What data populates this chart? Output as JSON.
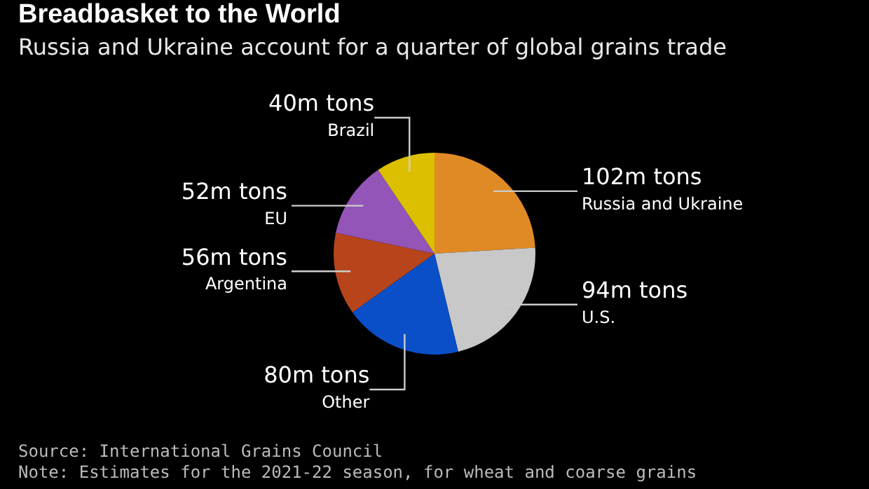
{
  "chart_data": {
    "type": "pie",
    "title": "Breadbasket to the World",
    "subtitle": "Russia and Ukraine account for a quarter of global grains trade",
    "categories": [
      "Russia and Ukraine",
      "U.S.",
      "Other",
      "Argentina",
      "EU",
      "Brazil"
    ],
    "values": [
      102,
      94,
      80,
      56,
      52,
      40
    ],
    "value_labels": [
      "102m tons",
      "94m tons",
      "80m tons",
      "56m tons",
      "52m tons",
      "40m tons"
    ],
    "colors": [
      "#e08a25",
      "#c8c8c8",
      "#0a4fc8",
      "#b8441c",
      "#9355b8",
      "#dcc000"
    ],
    "annotations": [
      "Source: International Grains Council",
      "Note: Estimates for the 2021-22 season, for wheat and coarse grains"
    ],
    "legend": false
  }
}
